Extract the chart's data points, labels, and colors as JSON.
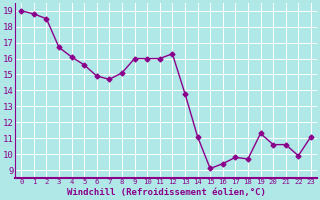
{
  "x": [
    0,
    1,
    2,
    3,
    4,
    5,
    6,
    7,
    8,
    9,
    10,
    11,
    12,
    13,
    14,
    15,
    16,
    17,
    18,
    19,
    20,
    21,
    22,
    23
  ],
  "y": [
    19,
    18.8,
    18.5,
    16.7,
    16.1,
    15.6,
    14.9,
    14.7,
    15.1,
    16.0,
    16.0,
    16.0,
    16.3,
    13.8,
    11.1,
    9.1,
    9.4,
    9.8,
    9.7,
    11.3,
    10.6,
    10.6,
    9.9,
    11.1
  ],
  "line_color": "#8B008B",
  "marker": "D",
  "marker_size": 2.5,
  "bg_color": "#b0e8e8",
  "grid_color": "#ffffff",
  "xlabel": "Windchill (Refroidissement éolien,°C)",
  "xlim": [
    -0.5,
    23.5
  ],
  "ylim": [
    8.5,
    19.5
  ],
  "yticks": [
    9,
    10,
    11,
    12,
    13,
    14,
    15,
    16,
    17,
    18,
    19
  ],
  "xticks": [
    0,
    1,
    2,
    3,
    4,
    5,
    6,
    7,
    8,
    9,
    10,
    11,
    12,
    13,
    14,
    15,
    16,
    17,
    18,
    19,
    20,
    21,
    22,
    23
  ],
  "tick_color": "#8B008B",
  "label_color": "#8B008B",
  "xlabel_fontsize": 6.5,
  "xtick_fontsize": 5.2,
  "ytick_fontsize": 6.5,
  "spine_color": "#8B008B",
  "bottom_spine_color": "#8B008B"
}
